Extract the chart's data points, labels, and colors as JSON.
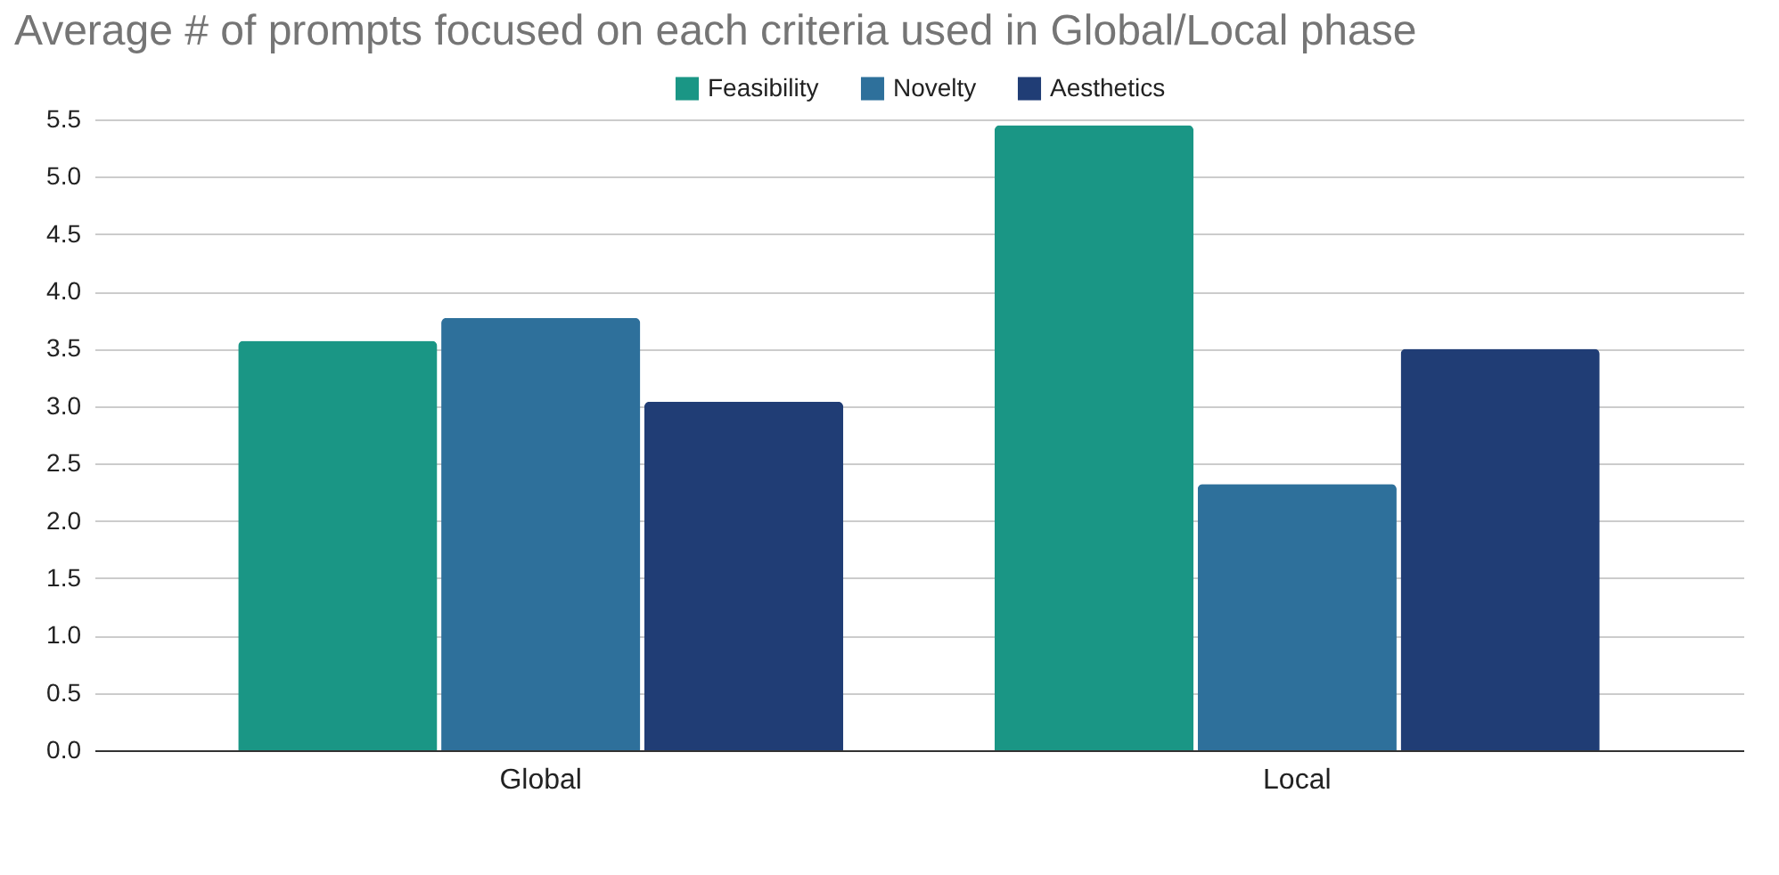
{
  "chart_data": {
    "type": "bar",
    "title": "Average # of prompts focused on each criteria used in Global/Local phase",
    "categories": [
      "Global",
      "Local"
    ],
    "series": [
      {
        "name": "Feasibility",
        "color": "#1a9685",
        "values": [
          3.57,
          5.45
        ]
      },
      {
        "name": "Novelty",
        "color": "#2e709b",
        "values": [
          3.77,
          2.32
        ]
      },
      {
        "name": "Aesthetics",
        "color": "#203d75",
        "values": [
          3.04,
          3.5
        ]
      }
    ],
    "ylim": [
      0,
      5.5
    ],
    "yticks": [
      {
        "value": 0,
        "label": "0.0"
      },
      0.5,
      {
        "value": 1,
        "label": "1.0"
      },
      1.5,
      {
        "value": 2,
        "label": "2.0"
      },
      2.5,
      {
        "value": 3,
        "label": "3.0"
      },
      3.5,
      {
        "value": 4,
        "label": "4.0"
      },
      4.5,
      {
        "value": 5,
        "label": "5.0"
      },
      5.5
    ],
    "grid": "y",
    "legend": "top"
  }
}
